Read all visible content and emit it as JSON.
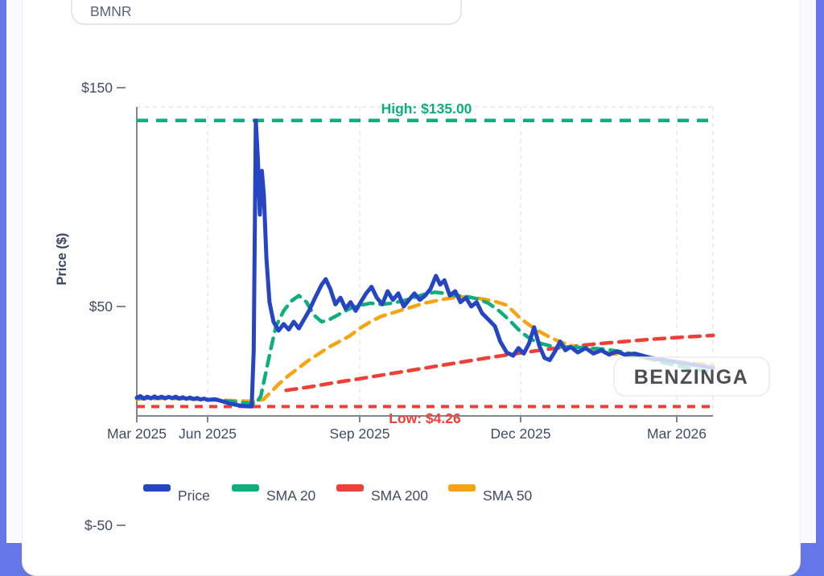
{
  "header": {
    "ticker_input": {
      "value": "BMNR",
      "placeholder": ""
    }
  },
  "watermark": "BENZINGA",
  "chart_data": {
    "type": "line",
    "title": "",
    "xlabel": "",
    "ylabel": "Price ($)",
    "x_unit": "months since Mar 2025",
    "x_ticks": [
      {
        "label": "Mar 2025",
        "m": 0
      },
      {
        "label": "Jun 2025",
        "m": 3
      },
      {
        "label": "Sep 2025",
        "m": 6
      },
      {
        "label": "Dec 2025",
        "m": 9
      },
      {
        "label": "Mar 2026",
        "m": 12
      }
    ],
    "y_ticks": [
      {
        "label": "$150",
        "v": 150
      },
      {
        "label": "$50",
        "v": 50
      },
      {
        "label": "$-50",
        "v": -50
      }
    ],
    "grid": "vertical-dashed",
    "legend_position": "bottom",
    "annotations": {
      "high": {
        "label": "High: $135.00",
        "value": 135,
        "color": "#0fae7d"
      },
      "low": {
        "label": "Low: $4.26",
        "value": 4.26,
        "color": "#ee4037"
      }
    },
    "series": [
      {
        "name": "Price",
        "color": "#2545c3",
        "style": "solid",
        "points": [
          [
            0,
            8.4
          ],
          [
            0.15,
            9.0
          ],
          [
            0.3,
            7.9
          ],
          [
            0.45,
            8.8
          ],
          [
            0.6,
            8.0
          ],
          [
            0.75,
            8.9
          ],
          [
            0.9,
            8.1
          ],
          [
            1.05,
            8.8
          ],
          [
            1.2,
            8.0
          ],
          [
            1.35,
            8.7
          ],
          [
            1.5,
            8.1
          ],
          [
            1.65,
            8.8
          ],
          [
            1.8,
            7.9
          ],
          [
            1.95,
            8.5
          ],
          [
            2.1,
            7.8
          ],
          [
            2.25,
            8.4
          ],
          [
            2.4,
            7.7
          ],
          [
            2.55,
            8.2
          ],
          [
            2.7,
            7.5
          ],
          [
            2.85,
            7.9
          ],
          [
            3.0,
            7.3
          ],
          [
            3.15,
            7.6
          ],
          [
            3.3,
            6.6
          ],
          [
            3.45,
            5.6
          ],
          [
            3.6,
            4.9
          ],
          [
            3.75,
            4.4
          ],
          [
            3.87,
            4.3
          ],
          [
            3.91,
            30
          ],
          [
            3.95,
            135
          ],
          [
            3.99,
            118
          ],
          [
            4.03,
            92
          ],
          [
            4.07,
            112
          ],
          [
            4.11,
            101
          ],
          [
            4.16,
            72
          ],
          [
            4.22,
            52
          ],
          [
            4.3,
            43
          ],
          [
            4.4,
            39
          ],
          [
            4.5,
            42
          ],
          [
            4.6,
            39.5
          ],
          [
            4.7,
            43
          ],
          [
            4.8,
            40
          ],
          [
            4.9,
            44
          ],
          [
            5.0,
            48
          ],
          [
            5.12,
            54
          ],
          [
            5.25,
            60
          ],
          [
            5.33,
            62.5
          ],
          [
            5.42,
            58
          ],
          [
            5.52,
            51
          ],
          [
            5.62,
            54
          ],
          [
            5.72,
            49
          ],
          [
            5.82,
            52
          ],
          [
            5.92,
            48
          ],
          [
            6.02,
            52
          ],
          [
            6.12,
            56
          ],
          [
            6.22,
            59
          ],
          [
            6.32,
            54
          ],
          [
            6.42,
            51
          ],
          [
            6.52,
            57
          ],
          [
            6.62,
            53
          ],
          [
            6.72,
            56
          ],
          [
            6.82,
            50
          ],
          [
            6.92,
            53
          ],
          [
            7.02,
            56
          ],
          [
            7.12,
            53
          ],
          [
            7.22,
            55
          ],
          [
            7.32,
            58
          ],
          [
            7.42,
            64
          ],
          [
            7.5,
            60
          ],
          [
            7.58,
            62
          ],
          [
            7.68,
            55
          ],
          [
            7.78,
            57
          ],
          [
            7.88,
            52
          ],
          [
            7.98,
            54
          ],
          [
            8.08,
            50
          ],
          [
            8.18,
            52
          ],
          [
            8.28,
            47
          ],
          [
            8.4,
            44
          ],
          [
            8.52,
            41
          ],
          [
            8.62,
            34
          ],
          [
            8.74,
            29
          ],
          [
            8.86,
            27.5
          ],
          [
            8.96,
            31
          ],
          [
            9.06,
            28.5
          ],
          [
            9.16,
            33
          ],
          [
            9.26,
            40.5
          ],
          [
            9.36,
            32
          ],
          [
            9.46,
            26.5
          ],
          [
            9.56,
            25.5
          ],
          [
            9.66,
            29.5
          ],
          [
            9.76,
            34
          ],
          [
            9.86,
            30
          ],
          [
            9.96,
            31.5
          ],
          [
            10.1,
            29
          ],
          [
            10.25,
            31
          ],
          [
            10.4,
            28.5
          ],
          [
            10.55,
            30
          ],
          [
            10.7,
            28
          ],
          [
            10.85,
            29.5
          ],
          [
            11.0,
            28
          ],
          [
            11.2,
            28.5
          ],
          [
            11.5,
            26.5
          ],
          [
            11.9,
            25
          ],
          [
            12.3,
            23.5
          ],
          [
            12.7,
            22
          ]
        ]
      },
      {
        "name": "SMA 20",
        "color": "#0fae7d",
        "style": "dashed",
        "points": [
          [
            0,
            8.0
          ],
          [
            0.4,
            8.3
          ],
          [
            0.8,
            8.2
          ],
          [
            1.2,
            8.4
          ],
          [
            1.6,
            8.2
          ],
          [
            2.0,
            8.1
          ],
          [
            2.4,
            7.9
          ],
          [
            2.8,
            7.7
          ],
          [
            3.2,
            7.2
          ],
          [
            3.5,
            6.5
          ],
          [
            3.8,
            5.8
          ],
          [
            3.95,
            5.6
          ],
          [
            4.05,
            9
          ],
          [
            4.15,
            20
          ],
          [
            4.25,
            31
          ],
          [
            4.35,
            41
          ],
          [
            4.5,
            48
          ],
          [
            4.65,
            52.5
          ],
          [
            4.8,
            55
          ],
          [
            4.95,
            52
          ],
          [
            5.1,
            46
          ],
          [
            5.25,
            43
          ],
          [
            5.4,
            44
          ],
          [
            5.6,
            46.5
          ],
          [
            5.8,
            49
          ],
          [
            6.0,
            50.5
          ],
          [
            6.2,
            51.5
          ],
          [
            6.4,
            51
          ],
          [
            6.6,
            51.5
          ],
          [
            6.8,
            52.5
          ],
          [
            7.0,
            54
          ],
          [
            7.2,
            55.5
          ],
          [
            7.4,
            56.5
          ],
          [
            7.6,
            56
          ],
          [
            7.8,
            55
          ],
          [
            8.0,
            54.5
          ],
          [
            8.2,
            53.5
          ],
          [
            8.4,
            51.5
          ],
          [
            8.6,
            48
          ],
          [
            8.8,
            43.5
          ],
          [
            9.0,
            38.5
          ],
          [
            9.2,
            35
          ],
          [
            9.4,
            33
          ],
          [
            9.6,
            31.8
          ],
          [
            9.8,
            31.5
          ],
          [
            10.0,
            31.5
          ],
          [
            10.3,
            31
          ],
          [
            10.6,
            30.5
          ],
          [
            10.9,
            29.5
          ],
          [
            11.2,
            28
          ],
          [
            11.5,
            26
          ],
          [
            11.8,
            24
          ],
          [
            12.1,
            22.5
          ],
          [
            12.4,
            21
          ],
          [
            12.7,
            20
          ]
        ]
      },
      {
        "name": "SMA 200",
        "color": "#ee4037",
        "style": "dashed",
        "points": [
          [
            4.55,
            11.7
          ],
          [
            5.0,
            13.2
          ],
          [
            5.5,
            15.2
          ],
          [
            6.0,
            17
          ],
          [
            6.5,
            19
          ],
          [
            7.0,
            21
          ],
          [
            7.5,
            23
          ],
          [
            8.0,
            25
          ],
          [
            8.5,
            27
          ],
          [
            9.0,
            28.8
          ],
          [
            9.5,
            30.4
          ],
          [
            10.0,
            31.8
          ],
          [
            10.5,
            33
          ],
          [
            11.0,
            34
          ],
          [
            11.5,
            35
          ],
          [
            12.0,
            35.8
          ],
          [
            12.7,
            36.8
          ]
        ]
      },
      {
        "name": "SMA 50",
        "color": "#f7a413",
        "style": "dashed",
        "points": [
          [
            0,
            7.7
          ],
          [
            0.4,
            8.0
          ],
          [
            0.8,
            7.9
          ],
          [
            1.2,
            8.1
          ],
          [
            1.6,
            8.0
          ],
          [
            2.0,
            7.9
          ],
          [
            2.4,
            7.7
          ],
          [
            2.8,
            7.5
          ],
          [
            3.2,
            7.2
          ],
          [
            3.6,
            6.9
          ],
          [
            3.9,
            6.6
          ],
          [
            4.1,
            7.5
          ],
          [
            4.25,
            11
          ],
          [
            4.4,
            14.5
          ],
          [
            4.6,
            18.5
          ],
          [
            4.8,
            22
          ],
          [
            5.0,
            25.5
          ],
          [
            5.2,
            28.5
          ],
          [
            5.4,
            31.5
          ],
          [
            5.6,
            34
          ],
          [
            5.8,
            36.5
          ],
          [
            6.0,
            40
          ],
          [
            6.2,
            43
          ],
          [
            6.4,
            45.5
          ],
          [
            6.6,
            47
          ],
          [
            6.8,
            48.5
          ],
          [
            7.0,
            50
          ],
          [
            7.2,
            51.5
          ],
          [
            7.4,
            52.5
          ],
          [
            7.6,
            53.5
          ],
          [
            7.8,
            54.2
          ],
          [
            8.0,
            54.5
          ],
          [
            8.2,
            53.8
          ],
          [
            8.5,
            52.5
          ],
          [
            8.75,
            50.5
          ],
          [
            9.0,
            44.5
          ],
          [
            9.2,
            41
          ],
          [
            9.4,
            38
          ],
          [
            9.6,
            35.5
          ],
          [
            9.8,
            33.5
          ],
          [
            10.0,
            32
          ],
          [
            10.25,
            30.5
          ],
          [
            10.5,
            29.5
          ],
          [
            10.75,
            28.5
          ],
          [
            11.0,
            28
          ],
          [
            11.35,
            26.5
          ],
          [
            11.7,
            25.5
          ],
          [
            12.1,
            24.5
          ],
          [
            12.7,
            23.5
          ]
        ]
      }
    ]
  }
}
